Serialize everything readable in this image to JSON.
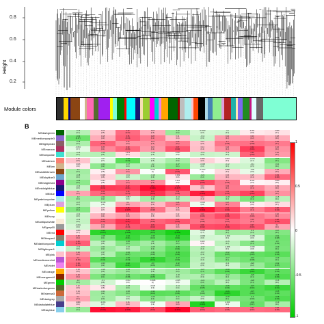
{
  "panel_a": {
    "ylabel": "Height",
    "yticks": [
      "0.8",
      "0.6",
      "0.4",
      "0.2"
    ],
    "module_colors_label": "Module colors",
    "color_bar": [
      "#2e2e2e",
      "#ffd700",
      "#000080",
      "#8b4513",
      "#ffffff",
      "#d2b48c",
      "#ff69b4",
      "#556b2f",
      "#a020f0",
      "#ffff00",
      "#7fffd4",
      "#008000",
      "#ff0000",
      "#00ffff",
      "#191970",
      "#f5deb3",
      "#9acd32",
      "#ff00ff",
      "#00ced1",
      "#ee82ee",
      "#ffa500",
      "#006400",
      "#8b0000",
      "#bebebe",
      "#afeeee",
      "#ffc0cb",
      "#ff4500",
      "#000000",
      "#add8e6",
      "#4682b4",
      "#90ee90",
      "#dda0dd",
      "#b22222",
      "#20b2aa",
      "#ffe4b5",
      "#7b68ee",
      "#228b22",
      "#c71585",
      "#e0ffff",
      "#696969"
    ]
  },
  "panel_b": {
    "letter": "B",
    "rows": [
      {
        "label": "MEdarkgreen",
        "color": "#006400"
      },
      {
        "label": "MEmediumpurple3",
        "color": "#8968cd"
      },
      {
        "label": "MElightpink4",
        "color": "#8b5f65"
      },
      {
        "label": "MEmaroon",
        "color": "#b03060"
      },
      {
        "label": "MEturquoise",
        "color": "#40e0d0"
      },
      {
        "label": "MEsalmon",
        "color": "#fa8072"
      },
      {
        "label": "MEtan",
        "color": "#d2b48c"
      },
      {
        "label": "MEsaddlebrown",
        "color": "#8b4513"
      },
      {
        "label": "MEskyblue3",
        "color": "#6ca6cd"
      },
      {
        "label": "MEmagenta4",
        "color": "#8b008b"
      },
      {
        "label": "MEmidnightblue",
        "color": "#191970"
      },
      {
        "label": "MEblue",
        "color": "#0000ff"
      },
      {
        "label": "MEpaleturquoise",
        "color": "#afeeee"
      },
      {
        "label": "MEplum",
        "color": "#dda0dd"
      },
      {
        "label": "MEyellow",
        "color": "#ffff00"
      },
      {
        "label": "MEivory",
        "color": "#fffff0"
      },
      {
        "label": "MEantiquewhite",
        "color": "#faebd7"
      },
      {
        "label": "MEgrey60",
        "color": "#999999"
      },
      {
        "label": "MEred",
        "color": "#ff0000"
      },
      {
        "label": "MEbisque4",
        "color": "#8b7d6b"
      },
      {
        "label": "MEdarkturquoise",
        "color": "#00ced1"
      },
      {
        "label": "MElightcyan1",
        "color": "#e0ffff"
      },
      {
        "label": "MEpink",
        "color": "#ffc0cb"
      },
      {
        "label": "MEmediumorchid",
        "color": "#ba55d3"
      },
      {
        "label": "MEviolet",
        "color": "#ee82ee"
      },
      {
        "label": "MEorange",
        "color": "#ffa500"
      },
      {
        "label": "MEorangered4",
        "color": "#8b2500"
      },
      {
        "label": "MEgreen",
        "color": "#00cd00"
      },
      {
        "label": "MEdarkolivegreen",
        "color": "#556b2f"
      },
      {
        "label": "MEsienna3",
        "color": "#cd6839"
      },
      {
        "label": "MEdarkgrey",
        "color": "#a9a9a9"
      },
      {
        "label": "MEdarkslateblue",
        "color": "#483d8b"
      },
      {
        "label": "MEskyblue",
        "color": "#87ceeb"
      }
    ],
    "legend_ticks": [
      "1",
      "0.5",
      "0",
      "-0.5",
      "-1"
    ],
    "cells": [
      [
        "-0.16|(0.4)",
        "0.12|(0.5)",
        "0.32|(0.07)",
        "0.18|(0.3)",
        "-0.22|(0.2)",
        "-0.0942|(0.6)",
        "-0.1|(0.6)",
        "0.051|(0.8)",
        "0.066|(0.7)"
      ],
      [
        "-0.32|(0.07)",
        "0.18|(0.3)",
        "0.35|(0.04)",
        "0.28|(0.1)",
        "0.14|(0.4)",
        "-0.12|(0.5)",
        "0.22|(0.2)",
        "0.23|(0.2)",
        "0.18|(0.3)"
      ],
      [
        "-0.18|(0.3)",
        "0.34|(0.05)",
        "0.24|(0.2)",
        "0.24|(0.2)",
        "0.29|(0.1)",
        "0.13|(0.5)",
        "0.3|(0.09)",
        "0.31|(0.08)",
        "0.29|(0.1)"
      ],
      [
        "-0.061|(0.7)",
        "0.26|(0.1)",
        "0.33|(0.06)",
        "0.22|(0.2)",
        "0.37|(0.03)",
        "0.14|(0.4)",
        "0.24|(0.2)",
        "0.42|(0.01)",
        "0.24|(0.2)"
      ],
      [
        "-0.15|(0.4)",
        "-0.16|(0.4)",
        "0.074|(0.7)",
        "-0.12|(0.5)",
        "-0.047|(0.8)",
        "-0.12|(0.5)",
        "-0.11|(0.5)",
        "0.34|(0.05)",
        "0.22|(0.2)"
      ],
      [
        "0.13|(0.5)",
        "-0.07|(0.7)",
        "-0.36|(0.03)",
        "-0.12|(0.5)",
        "-0.19|(0.3)",
        "0.099|(0.6)",
        "0.046|(0.8)",
        "-0.079|(0.7)",
        "-0.27|(0.1)"
      ],
      [
        "0.046|(0.8)",
        "-0.24|(0.2)",
        "-0.17|(0.3)",
        "-0.2|(0.3)",
        "-0.27|(0.1)",
        "-0.098|(0.6)",
        "-0.12|(0.5)",
        "-0.11|(0.5)",
        "-0.21|(0.2)"
      ],
      [
        "-0.2|(0.3)",
        "0.034|(0.8)",
        "0.23|(0.2)",
        "-0.011|(1)",
        "0.37|(0.03)",
        "-0.0067|(1)",
        "0.086|(0.6)",
        "-0.05|(0.8)",
        "0.18|(0.3)"
      ],
      [
        "-0.18|(0.3)",
        "0.098|(0.6)",
        "-0.11|(0.5)",
        "-0.18|(0.3)",
        "0.049|(0.8)",
        "-0.22|(0.2)",
        "0.16|(0.4)",
        "0.15|(0.4)",
        "0.33|(0.06)"
      ],
      [
        "-0.25|(0.2)",
        "0.044|(0.8)",
        "0.27|(0.1)",
        "0.25|(0.2)",
        "0.016|(0.9)",
        "0.39|(0.02)",
        "0.3|(0.09)",
        "0.024|(0.9)",
        "0.036|(0.8)"
      ],
      [
        "-0.13|(0.5)",
        "0.43|(0.01)",
        "0.42|(0.01)",
        "0.52|(0.002)",
        "0.46|(0.007)",
        "0.13|(0.5)",
        "0.29|(0.1)",
        "0.27|(0.1)",
        "0.19|(0.3)"
      ],
      [
        "0.2|(0.3)",
        "0.33|(0.06)",
        "0.35|(0.04)",
        "0.44|(0.01)",
        "0.34|(0.05)",
        "0.49|(0.004)",
        "0.36|(0.04)",
        "0.41|(0.02)",
        "0.24|(0.2)"
      ],
      [
        "-0.2|(0.3)",
        "-0.21|(0.2)",
        "-0.087|(0.6)",
        "-0.19|(0.3)",
        "-0.14|(0.4)",
        "0.14|(0.4)",
        "-0.18|(0.3)",
        "-0.28|(0.1)",
        "-0.15|(0.4)"
      ],
      [
        "-0.17|(0.3)",
        "-0.046|(0.8)",
        "0.2|(0.3)",
        "0.15|(0.4)",
        "0.28|(0.1)",
        "-0.036|(0.8)",
        "0.27|(0.1)",
        "0.042|(0.8)",
        "0.074|(0.7)"
      ],
      [
        "-0.27|(0.1)",
        "0.07|(0.7)",
        "0.46|(0.007)",
        "0.31|(0.08)",
        "0.15|(0.4)",
        "0.51|(0.002)",
        "0.41|(0.02)",
        "0.29|(0.1)",
        "0.36|(0.04)"
      ],
      [
        "-0.12|(0.5)",
        "0.16|(0.4)",
        "0.21|(0.2)",
        "0.12|(0.5)",
        "0.12|(0.5)",
        "0.33|(0.06)",
        "0.39|(0.02)",
        "0.3|(0.09)",
        "0.26|(0.1)"
      ],
      [
        "-0.13|(0.5)",
        "0.34|(0.05)",
        "0.44|(0.01)",
        "0.34|(0.05)",
        "0.37|(0.03)",
        "0.31|(0.08)",
        "0.32|(0.07)",
        "0.29|(0.1)",
        "0.38|(0.03)"
      ],
      [
        "-0.091|(0.6)",
        "0.19|(0.3)",
        "0.36|(0.04)",
        "0.39|(0.02)",
        "0.19|(0.3)",
        "0.39|(0.02)",
        "0.4|(0.02)",
        "0.37|(0.03)",
        "0.2|(0.3)"
      ],
      [
        "0.069|(0.7)",
        "-0.46|(0.007)",
        "-0.45|(0.009)",
        "-0.43|(0.01)",
        "-0.5|(0.003)",
        "-0.069|(0.7)",
        "-0.21|(0.2)",
        "-0.2|(0.3)",
        "-0.27|(0.1)"
      ],
      [
        "0.25|(0.2)",
        "-0.28|(0.1)",
        "-0.42|(0.01)",
        "-0.35|(0.04)",
        "-0.43|(0.01)",
        "-0.099|(0.6)",
        "-0.093|(0.6)",
        "-0.084|(0.6)",
        "-0.31|(0.08)"
      ],
      [
        "0.35|(0.04)",
        "-0.14|(0.4)",
        "-0.26|(0.1)",
        "-0.2|(0.3)",
        "-0.27|(0.1)",
        "0.023|(0.9)",
        "-0.15|(0.4)",
        "-0.26|(0.1)",
        "-0.3|(0.09)"
      ],
      [
        "-0.12|(0.5)",
        "-0.21|(0.2)",
        "-0.16|(0.4)",
        "-0.25|(0.2)",
        "-0.35|(0.04)",
        "-0.15|(0.4)",
        "-0.086|(0.6)",
        "-0.052|(0.8)",
        "-0.29|(0.1)"
      ],
      [
        "0.24|(0.2)",
        "-0.17|(0.3)",
        "-0.32|(0.07)",
        "-0.31|(0.08)",
        "-0.39|(0.02)",
        "-0.17|(0.3)",
        "-0.32|(0.07)",
        "-0.34|(0.05)",
        "-0.36|(0.04)"
      ],
      [
        "0.3|(0.09)",
        "-0.36|(0.04)",
        "-0.36|(0.04)",
        "-0.44|(0.01)",
        "-0.37|(0.03)",
        "-0.15|(0.4)",
        "-0.27|(0.1)",
        "-0.31|(0.08)",
        "-0.29|(0.1)"
      ],
      [
        "0.34|(0.05)",
        "-0.23|(0.2)",
        "-0.42|(0.01)",
        "-0.3|(0.09)",
        "-0.32|(0.07)",
        "-0.13|(0.5)",
        "-0.11|(0.5)",
        "-0.22|(0.2)",
        "-0.32|(0.07)"
      ],
      [
        "0.13|(0.5)",
        "-0.18|(0.3)",
        "-0.22|(0.2)",
        "-0.18|(0.3)",
        "-0.21|(0.2)",
        "-0.27|(0.1)",
        "-0.36|(0.04)",
        "-0.43|(0.01)",
        "-0.35|(0.04)"
      ],
      [
        "0.23|(0.2)",
        "-0.28|(0.1)",
        "-0.31|(0.08)",
        "-0.34|(0.05)",
        "-0.18|(0.3)",
        "-0.17|(0.3)",
        "-0.22|(0.2)",
        "-0.29|(0.1)",
        "-0.38|(0.03)"
      ],
      [
        "-0.2|(0.3)",
        "-0.1|(0.6)",
        "-0.012|(0.9)",
        "0.0028|(1)",
        "-0.035|(0.8)",
        "-0.24|(0.2)",
        "-0.15|(0.4)",
        "-0.28|(0.1)",
        "-0.16|(0.4)"
      ],
      [
        "0.12|(0.5)",
        "0.053|(0.8)",
        "-0.18|(0.3)",
        "-0.026|(0.9)",
        "-0.14|(0.4)",
        "-0.34|(0.05)",
        "-0.35|(0.04)",
        "-0.37|(0.03)",
        "-0.42|(0.01)"
      ],
      [
        "0.14|(0.4)",
        "-0.21|(0.2)",
        "-0.26|(0.1)",
        "-0.36|(0.04)",
        "-0.35|(0.04)",
        "-0.3|(0.09)",
        "-0.46|(0.007)",
        "-0.37|(0.03)",
        "-0.35|(0.04)"
      ],
      [
        "0.2|(0.3)",
        "-0.2|(0.3)",
        "-0.11|(0.5)",
        "-0.25|(0.2)",
        "-0.21|(0.2)",
        "-0.12|(0.5)",
        "-0.28|(0.1)",
        "-0.3|(0.09)",
        "-0.38|(0.03)"
      ],
      [
        "0.089|(0.6)",
        "-0.066|(0.7)",
        "0.15|(0.4)",
        "-0.026|(0.9)",
        "0.19|(0.3)",
        "-0.48|(0.005)",
        "-0.043|(0.8)",
        "-0.32|(0.07)",
        "-0.19|(0.3)"
      ],
      [
        "-0.22|(0.2)",
        "0.52|(0.002)",
        "0.5|(0.003)",
        "0.4|(0.02)",
        "0.55|(0.001)",
        "0.35|(0.04)",
        "0.33|(0.06)",
        "0.32|(0.07)",
        "0.33|(0.06)"
      ]
    ]
  }
}
